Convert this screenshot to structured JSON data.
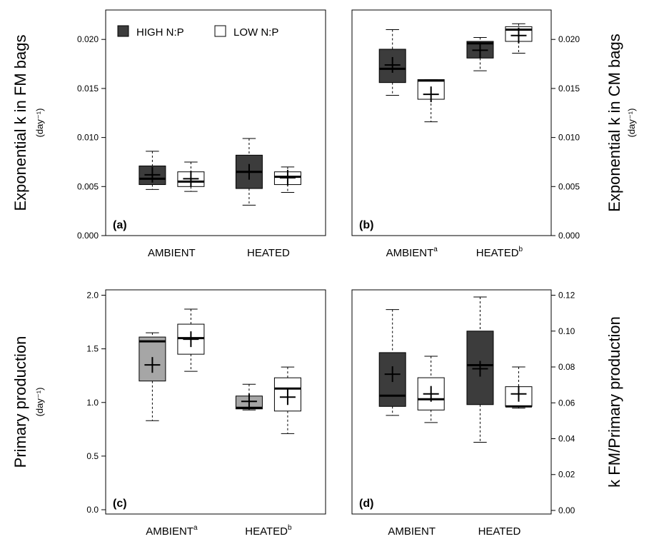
{
  "figure": {
    "legend": {
      "high_label": "HIGH N:P",
      "low_label": "LOW N:P",
      "high_color": "#3c3c3c",
      "low_color": "#ffffff",
      "alt_high_color": "#a6a6a6"
    }
  },
  "chart_data": [
    {
      "panel": "(a)",
      "type": "box",
      "ylabel_main": "Exponential k in FM bags",
      "ylabel_unit": "(day⁻¹)",
      "yaxis_side": "left",
      "ylim": [
        0,
        0.023
      ],
      "yticks": [
        0.0,
        0.005,
        0.01,
        0.015,
        0.02
      ],
      "ytick_labels": [
        "0.000",
        "0.005",
        "0.010",
        "0.015",
        "0.020"
      ],
      "groups": [
        {
          "label": "AMBIENT",
          "sup": "",
          "boxes": [
            {
              "series": "HIGH N:P",
              "min": 0.0047,
              "q1": 0.0052,
              "median": 0.0058,
              "q3": 0.0071,
              "max": 0.0086,
              "mean": 0.0062
            },
            {
              "series": "LOW N:P",
              "min": 0.0045,
              "q1": 0.005,
              "median": 0.0055,
              "q3": 0.0065,
              "max": 0.0075,
              "mean": 0.0058
            }
          ]
        },
        {
          "label": "HEATED",
          "sup": "",
          "boxes": [
            {
              "series": "HIGH N:P",
              "min": 0.0031,
              "q1": 0.0048,
              "median": 0.0065,
              "q3": 0.0082,
              "max": 0.0099,
              "mean": 0.0065
            },
            {
              "series": "LOW N:P",
              "min": 0.0044,
              "q1": 0.0052,
              "median": 0.006,
              "q3": 0.0065,
              "max": 0.007,
              "mean": 0.0059
            }
          ]
        }
      ]
    },
    {
      "panel": "(b)",
      "type": "box",
      "ylabel_main": "Exponential k in CM bags",
      "ylabel_unit": "(day⁻¹)",
      "yaxis_side": "right",
      "ylim": [
        0,
        0.023
      ],
      "yticks": [
        0.0,
        0.005,
        0.01,
        0.015,
        0.02
      ],
      "ytick_labels": [
        "0.000",
        "0.005",
        "0.010",
        "0.015",
        "0.020"
      ],
      "groups": [
        {
          "label": "AMBIENT",
          "sup": "a",
          "boxes": [
            {
              "series": "HIGH N:P",
              "min": 0.0143,
              "q1": 0.0156,
              "median": 0.017,
              "q3": 0.019,
              "max": 0.021,
              "mean": 0.0174
            },
            {
              "series": "LOW N:P",
              "min": 0.0116,
              "q1": 0.0139,
              "median": 0.0158,
              "q3": 0.0159,
              "max": 0.0159,
              "mean": 0.0144
            }
          ]
        },
        {
          "label": "HEATED",
          "sup": "b",
          "boxes": [
            {
              "series": "HIGH N:P",
              "min": 0.0168,
              "q1": 0.0181,
              "median": 0.0196,
              "q3": 0.0198,
              "max": 0.0202,
              "mean": 0.0189
            },
            {
              "series": "LOW N:P",
              "min": 0.0186,
              "q1": 0.0198,
              "median": 0.021,
              "q3": 0.0213,
              "max": 0.0216,
              "mean": 0.0204
            }
          ]
        }
      ]
    },
    {
      "panel": "(c)",
      "type": "box",
      "ylabel_main": "Primary production",
      "ylabel_unit": "(day⁻¹)",
      "yaxis_side": "left",
      "ylim": [
        -0.04,
        2.05
      ],
      "yticks": [
        0.0,
        0.5,
        1.0,
        1.5,
        2.0
      ],
      "ytick_labels": [
        "0.0",
        "0.5",
        "1.0",
        "1.5",
        "2.0"
      ],
      "groups": [
        {
          "label": "AMBIENT",
          "sup": "a",
          "boxes": [
            {
              "series": "HIGH N:P",
              "fill": "alt",
              "min": 0.83,
              "q1": 1.2,
              "median": 1.57,
              "q3": 1.61,
              "max": 1.65,
              "mean": 1.35
            },
            {
              "series": "LOW N:P",
              "min": 1.29,
              "q1": 1.45,
              "median": 1.6,
              "q3": 1.73,
              "max": 1.87,
              "mean": 1.59
            }
          ]
        },
        {
          "label": "HEATED",
          "sup": "b",
          "boxes": [
            {
              "series": "HIGH N:P",
              "fill": "alt",
              "min": 0.93,
              "q1": 0.94,
              "median": 0.95,
              "q3": 1.06,
              "max": 1.17,
              "mean": 1.01
            },
            {
              "series": "LOW N:P",
              "min": 0.71,
              "q1": 0.92,
              "median": 1.13,
              "q3": 1.23,
              "max": 1.33,
              "mean": 1.05
            }
          ]
        }
      ]
    },
    {
      "panel": "(d)",
      "type": "box",
      "ylabel_main": "k FM/Primary production",
      "ylabel_unit": "",
      "yaxis_side": "right",
      "ylim": [
        -0.002,
        0.123
      ],
      "yticks": [
        0.0,
        0.02,
        0.04,
        0.06,
        0.08,
        0.1,
        0.12
      ],
      "ytick_labels": [
        "0.00",
        "0.02",
        "0.04",
        "0.06",
        "0.08",
        "0.10",
        "0.12"
      ],
      "groups": [
        {
          "label": "AMBIENT",
          "sup": "",
          "boxes": [
            {
              "series": "HIGH N:P",
              "min": 0.053,
              "q1": 0.058,
              "median": 0.064,
              "q3": 0.088,
              "max": 0.112,
              "mean": 0.076
            },
            {
              "series": "LOW N:P",
              "min": 0.049,
              "q1": 0.056,
              "median": 0.062,
              "q3": 0.074,
              "max": 0.086,
              "mean": 0.065
            }
          ]
        },
        {
          "label": "HEATED",
          "sup": "",
          "boxes": [
            {
              "series": "HIGH N:P",
              "min": 0.038,
              "q1": 0.059,
              "median": 0.081,
              "q3": 0.1,
              "max": 0.119,
              "mean": 0.079
            },
            {
              "series": "LOW N:P",
              "min": 0.057,
              "q1": 0.058,
              "median": 0.058,
              "q3": 0.069,
              "max": 0.08,
              "mean": 0.065
            }
          ]
        }
      ]
    }
  ]
}
